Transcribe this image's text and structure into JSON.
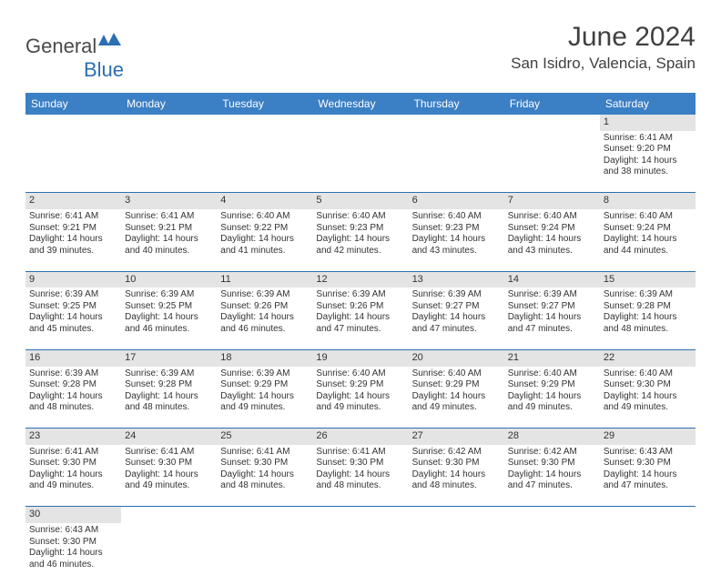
{
  "logo": {
    "text_general": "General",
    "text_blue": "Blue"
  },
  "title": "June 2024",
  "location": "San Isidro, Valencia, Spain",
  "colors": {
    "header_bg": "#3b7fc4",
    "header_text": "#ffffff",
    "daynum_bg": "#e4e4e4",
    "border": "#2d6fb3",
    "text": "#333333",
    "logo_blue": "#2d6fb3"
  },
  "weekdays": [
    "Sunday",
    "Monday",
    "Tuesday",
    "Wednesday",
    "Thursday",
    "Friday",
    "Saturday"
  ],
  "weeks": [
    {
      "days": [
        null,
        null,
        null,
        null,
        null,
        null,
        {
          "n": "1",
          "sunrise": "Sunrise: 6:41 AM",
          "sunset": "Sunset: 9:20 PM",
          "d1": "Daylight: 14 hours",
          "d2": "and 38 minutes."
        }
      ]
    },
    {
      "days": [
        {
          "n": "2",
          "sunrise": "Sunrise: 6:41 AM",
          "sunset": "Sunset: 9:21 PM",
          "d1": "Daylight: 14 hours",
          "d2": "and 39 minutes."
        },
        {
          "n": "3",
          "sunrise": "Sunrise: 6:41 AM",
          "sunset": "Sunset: 9:21 PM",
          "d1": "Daylight: 14 hours",
          "d2": "and 40 minutes."
        },
        {
          "n": "4",
          "sunrise": "Sunrise: 6:40 AM",
          "sunset": "Sunset: 9:22 PM",
          "d1": "Daylight: 14 hours",
          "d2": "and 41 minutes."
        },
        {
          "n": "5",
          "sunrise": "Sunrise: 6:40 AM",
          "sunset": "Sunset: 9:23 PM",
          "d1": "Daylight: 14 hours",
          "d2": "and 42 minutes."
        },
        {
          "n": "6",
          "sunrise": "Sunrise: 6:40 AM",
          "sunset": "Sunset: 9:23 PM",
          "d1": "Daylight: 14 hours",
          "d2": "and 43 minutes."
        },
        {
          "n": "7",
          "sunrise": "Sunrise: 6:40 AM",
          "sunset": "Sunset: 9:24 PM",
          "d1": "Daylight: 14 hours",
          "d2": "and 43 minutes."
        },
        {
          "n": "8",
          "sunrise": "Sunrise: 6:40 AM",
          "sunset": "Sunset: 9:24 PM",
          "d1": "Daylight: 14 hours",
          "d2": "and 44 minutes."
        }
      ]
    },
    {
      "days": [
        {
          "n": "9",
          "sunrise": "Sunrise: 6:39 AM",
          "sunset": "Sunset: 9:25 PM",
          "d1": "Daylight: 14 hours",
          "d2": "and 45 minutes."
        },
        {
          "n": "10",
          "sunrise": "Sunrise: 6:39 AM",
          "sunset": "Sunset: 9:25 PM",
          "d1": "Daylight: 14 hours",
          "d2": "and 46 minutes."
        },
        {
          "n": "11",
          "sunrise": "Sunrise: 6:39 AM",
          "sunset": "Sunset: 9:26 PM",
          "d1": "Daylight: 14 hours",
          "d2": "and 46 minutes."
        },
        {
          "n": "12",
          "sunrise": "Sunrise: 6:39 AM",
          "sunset": "Sunset: 9:26 PM",
          "d1": "Daylight: 14 hours",
          "d2": "and 47 minutes."
        },
        {
          "n": "13",
          "sunrise": "Sunrise: 6:39 AM",
          "sunset": "Sunset: 9:27 PM",
          "d1": "Daylight: 14 hours",
          "d2": "and 47 minutes."
        },
        {
          "n": "14",
          "sunrise": "Sunrise: 6:39 AM",
          "sunset": "Sunset: 9:27 PM",
          "d1": "Daylight: 14 hours",
          "d2": "and 47 minutes."
        },
        {
          "n": "15",
          "sunrise": "Sunrise: 6:39 AM",
          "sunset": "Sunset: 9:28 PM",
          "d1": "Daylight: 14 hours",
          "d2": "and 48 minutes."
        }
      ]
    },
    {
      "days": [
        {
          "n": "16",
          "sunrise": "Sunrise: 6:39 AM",
          "sunset": "Sunset: 9:28 PM",
          "d1": "Daylight: 14 hours",
          "d2": "and 48 minutes."
        },
        {
          "n": "17",
          "sunrise": "Sunrise: 6:39 AM",
          "sunset": "Sunset: 9:28 PM",
          "d1": "Daylight: 14 hours",
          "d2": "and 48 minutes."
        },
        {
          "n": "18",
          "sunrise": "Sunrise: 6:39 AM",
          "sunset": "Sunset: 9:29 PM",
          "d1": "Daylight: 14 hours",
          "d2": "and 49 minutes."
        },
        {
          "n": "19",
          "sunrise": "Sunrise: 6:40 AM",
          "sunset": "Sunset: 9:29 PM",
          "d1": "Daylight: 14 hours",
          "d2": "and 49 minutes."
        },
        {
          "n": "20",
          "sunrise": "Sunrise: 6:40 AM",
          "sunset": "Sunset: 9:29 PM",
          "d1": "Daylight: 14 hours",
          "d2": "and 49 minutes."
        },
        {
          "n": "21",
          "sunrise": "Sunrise: 6:40 AM",
          "sunset": "Sunset: 9:29 PM",
          "d1": "Daylight: 14 hours",
          "d2": "and 49 minutes."
        },
        {
          "n": "22",
          "sunrise": "Sunrise: 6:40 AM",
          "sunset": "Sunset: 9:30 PM",
          "d1": "Daylight: 14 hours",
          "d2": "and 49 minutes."
        }
      ]
    },
    {
      "days": [
        {
          "n": "23",
          "sunrise": "Sunrise: 6:41 AM",
          "sunset": "Sunset: 9:30 PM",
          "d1": "Daylight: 14 hours",
          "d2": "and 49 minutes."
        },
        {
          "n": "24",
          "sunrise": "Sunrise: 6:41 AM",
          "sunset": "Sunset: 9:30 PM",
          "d1": "Daylight: 14 hours",
          "d2": "and 49 minutes."
        },
        {
          "n": "25",
          "sunrise": "Sunrise: 6:41 AM",
          "sunset": "Sunset: 9:30 PM",
          "d1": "Daylight: 14 hours",
          "d2": "and 48 minutes."
        },
        {
          "n": "26",
          "sunrise": "Sunrise: 6:41 AM",
          "sunset": "Sunset: 9:30 PM",
          "d1": "Daylight: 14 hours",
          "d2": "and 48 minutes."
        },
        {
          "n": "27",
          "sunrise": "Sunrise: 6:42 AM",
          "sunset": "Sunset: 9:30 PM",
          "d1": "Daylight: 14 hours",
          "d2": "and 48 minutes."
        },
        {
          "n": "28",
          "sunrise": "Sunrise: 6:42 AM",
          "sunset": "Sunset: 9:30 PM",
          "d1": "Daylight: 14 hours",
          "d2": "and 47 minutes."
        },
        {
          "n": "29",
          "sunrise": "Sunrise: 6:43 AM",
          "sunset": "Sunset: 9:30 PM",
          "d1": "Daylight: 14 hours",
          "d2": "and 47 minutes."
        }
      ]
    },
    {
      "days": [
        {
          "n": "30",
          "sunrise": "Sunrise: 6:43 AM",
          "sunset": "Sunset: 9:30 PM",
          "d1": "Daylight: 14 hours",
          "d2": "and 46 minutes."
        },
        null,
        null,
        null,
        null,
        null,
        null
      ]
    }
  ]
}
